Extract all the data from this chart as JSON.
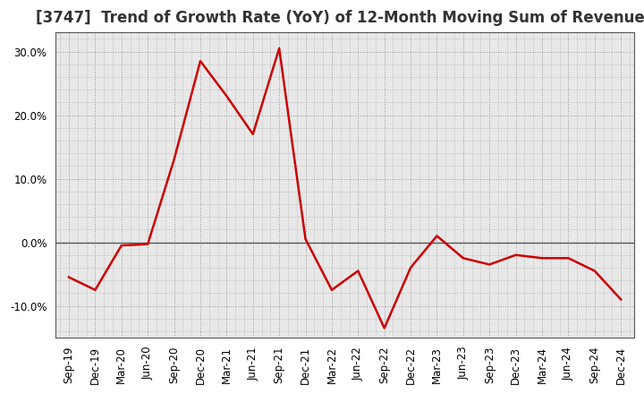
{
  "title": "[3747]  Trend of Growth Rate (YoY) of 12-Month Moving Sum of Revenues",
  "line_color": "#cc0000",
  "background_color": "#ffffff",
  "plot_bg_color": "#e8e8e8",
  "grid_color": "#999999",
  "zero_line_color": "#555555",
  "border_color": "#555555",
  "labels": [
    "Sep-19",
    "Dec-19",
    "Mar-20",
    "Jun-20",
    "Sep-20",
    "Dec-20",
    "Mar-21",
    "Jun-21",
    "Sep-21",
    "Dec-21",
    "Mar-22",
    "Jun-22",
    "Sep-22",
    "Dec-22",
    "Mar-23",
    "Jun-23",
    "Sep-23",
    "Dec-23",
    "Mar-24",
    "Jun-24",
    "Sep-24",
    "Dec-24"
  ],
  "values": [
    -5.5,
    -7.5,
    -0.5,
    -0.3,
    13.0,
    28.5,
    23.0,
    17.0,
    30.5,
    0.5,
    -7.5,
    -4.5,
    -13.5,
    -4.0,
    1.0,
    -2.5,
    -3.5,
    -2.0,
    -2.5,
    -2.5,
    -4.5,
    -9.0
  ],
  "ylim": [
    -15,
    33
  ],
  "yticks": [
    -10.0,
    0.0,
    10.0,
    20.0,
    30.0
  ],
  "title_fontsize": 12,
  "tick_fontsize": 8.5,
  "linewidth": 1.8
}
